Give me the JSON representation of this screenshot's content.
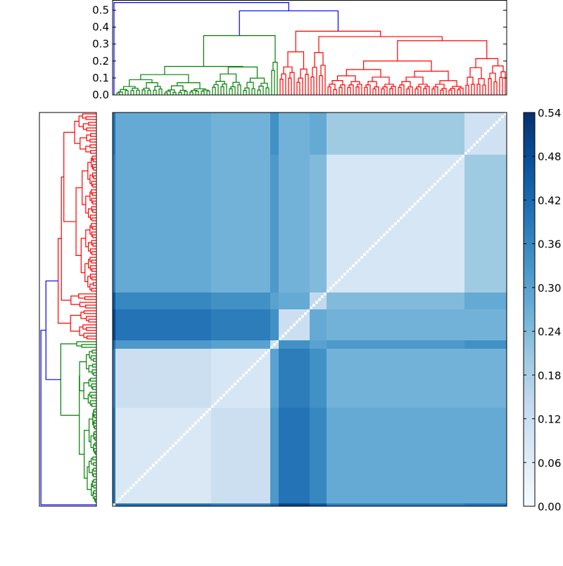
{
  "chart_data": {
    "type": "heatmap",
    "title": "",
    "colormap": "Blues",
    "colormap_stops": [
      "#f7fbff",
      "#deebf7",
      "#c6dbef",
      "#9ecae1",
      "#6baed6",
      "#4292c6",
      "#2171b5",
      "#08519c",
      "#08306b"
    ],
    "value_range": [
      0.0,
      0.54
    ],
    "colorbar_ticks": [
      "0.00",
      "0.06",
      "0.12",
      "0.18",
      "0.24",
      "0.30",
      "0.36",
      "0.42",
      "0.48",
      "0.54"
    ],
    "leaf_count": 140,
    "segments": [
      {
        "id": "S",
        "leaves": 1
      },
      {
        "id": "A",
        "leaves": 34
      },
      {
        "id": "B",
        "leaves": 21
      },
      {
        "id": "C",
        "leaves": 3
      },
      {
        "id": "D",
        "leaves": 11
      },
      {
        "id": "E",
        "leaves": 6
      },
      {
        "id": "F",
        "leaves": 49
      },
      {
        "id": "G",
        "leaves": 15
      }
    ],
    "block_means": [
      [
        0.0,
        0.4,
        0.38,
        0.42,
        0.5,
        0.46,
        0.38,
        0.4
      ],
      [
        0.4,
        0.08,
        0.12,
        0.32,
        0.4,
        0.36,
        0.28,
        0.28
      ],
      [
        0.38,
        0.12,
        0.09,
        0.3,
        0.38,
        0.34,
        0.26,
        0.26
      ],
      [
        0.42,
        0.32,
        0.3,
        0.12,
        0.34,
        0.3,
        0.32,
        0.34
      ],
      [
        0.5,
        0.4,
        0.38,
        0.34,
        0.12,
        0.28,
        0.26,
        0.26
      ],
      [
        0.46,
        0.36,
        0.34,
        0.3,
        0.28,
        0.14,
        0.24,
        0.28
      ],
      [
        0.38,
        0.28,
        0.26,
        0.32,
        0.26,
        0.24,
        0.09,
        0.2
      ],
      [
        0.4,
        0.28,
        0.26,
        0.34,
        0.26,
        0.28,
        0.2,
        0.11
      ]
    ],
    "diagonal_value": 0.0,
    "dendrogram": {
      "ylim": [
        0.0,
        0.56
      ],
      "yticks": [
        "0.0",
        "0.1",
        "0.2",
        "0.3",
        "0.4",
        "0.5"
      ],
      "colors": {
        "blue": "#0000ff",
        "green": "#008000",
        "red": "#ff0000"
      },
      "tree": {
        "h": 0.545,
        "color": "blue",
        "children": [
          {
            "segment": "S"
          },
          {
            "h": 0.496,
            "color": "blue",
            "children": [
              {
                "h": 0.35,
                "color": "green",
                "children": [
                  {
                    "h": 0.168,
                    "color": "green",
                    "children": [
                      {
                        "segment": "A",
                        "h": 0.12,
                        "color": "green"
                      },
                      {
                        "segment": "B",
                        "h": 0.165,
                        "color": "green"
                      }
                    ]
                  },
                  {
                    "segment": "C",
                    "h": 0.193,
                    "color": "green"
                  }
                ]
              },
              {
                "h": 0.376,
                "color": "red",
                "children": [
                  {
                    "segment": "D",
                    "h": 0.254,
                    "color": "red"
                  },
                  {
                    "h": 0.344,
                    "color": "red",
                    "children": [
                      {
                        "segment": "E",
                        "h": 0.25,
                        "color": "red"
                      },
                      {
                        "h": 0.32,
                        "color": "red",
                        "children": [
                          {
                            "segment": "F",
                            "h": 0.2,
                            "color": "red"
                          },
                          {
                            "segment": "G",
                            "h": 0.214,
                            "color": "red"
                          }
                        ]
                      }
                    ]
                  }
                ]
              }
            ]
          }
        ]
      }
    }
  }
}
